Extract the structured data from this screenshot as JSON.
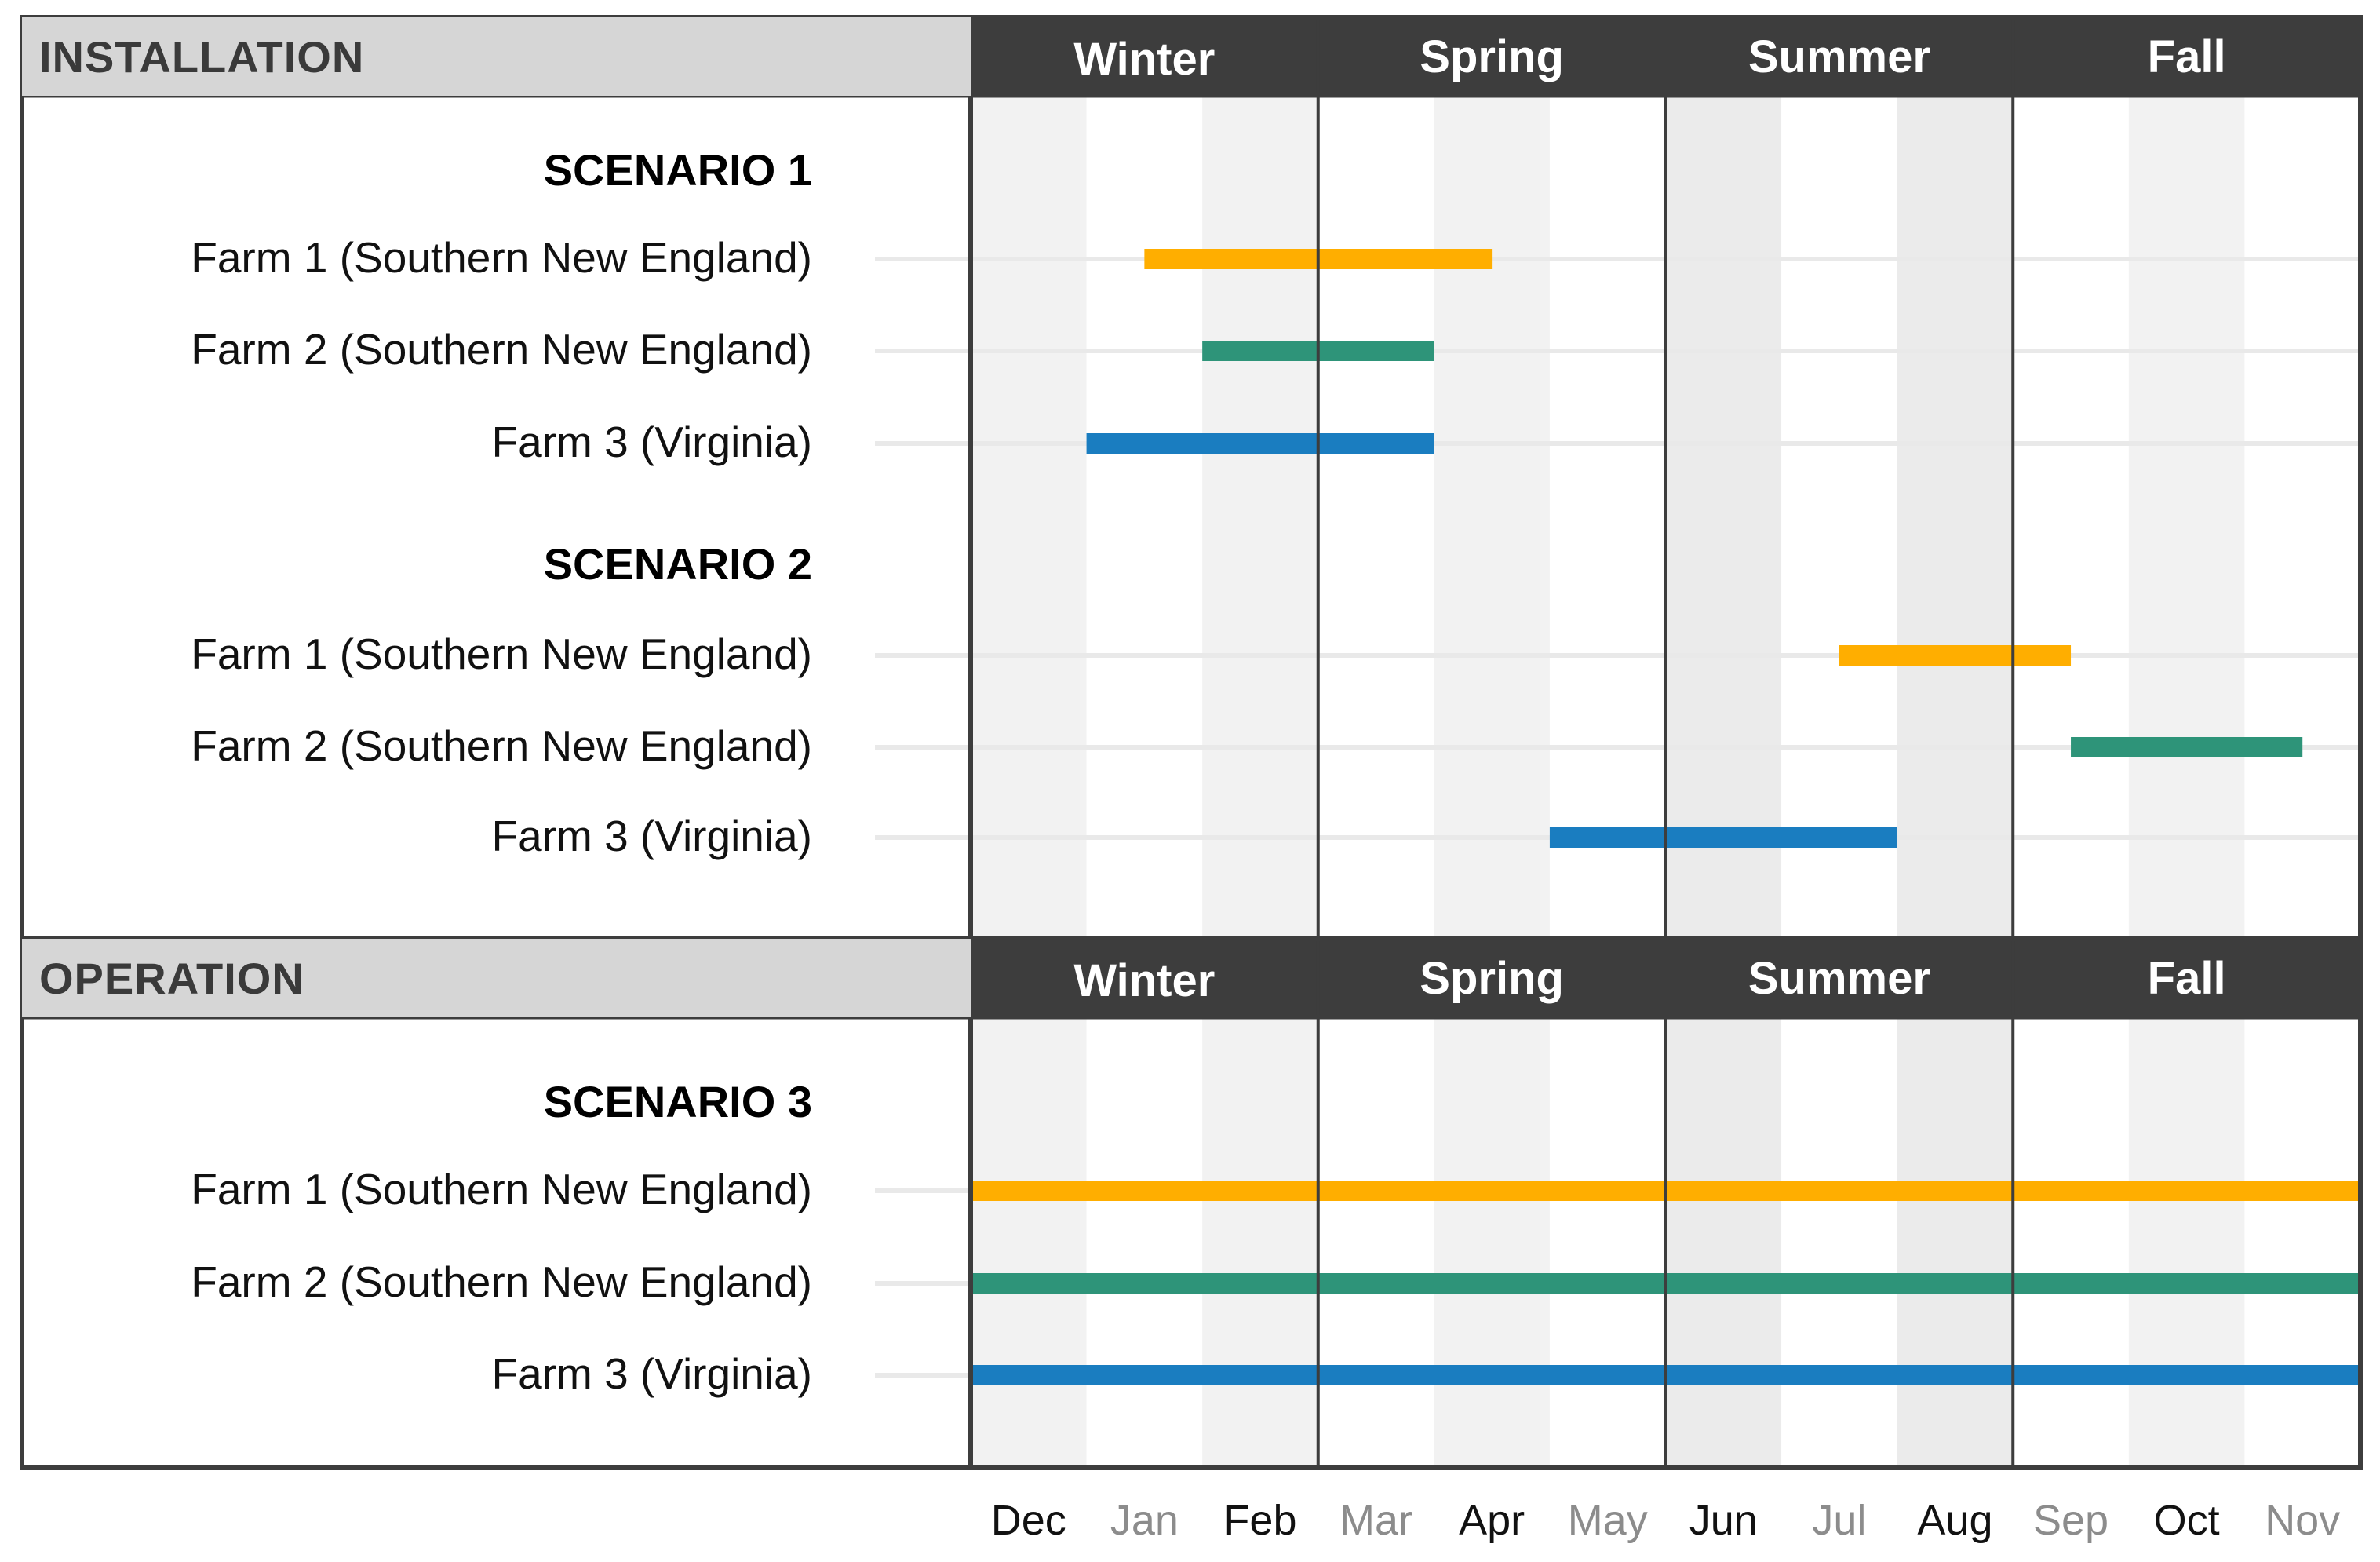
{
  "sections": [
    {
      "title": "INSTALLATION",
      "seasons": [
        "Winter",
        "Spring",
        "Summer",
        "Fall"
      ],
      "scenarios": [
        {
          "title": "SCENARIO 1",
          "farms": [
            {
              "label": "Farm 1 (Southern New England)",
              "color": "#FFAE00",
              "start": 1.5,
              "end": 4.5
            },
            {
              "label": "Farm 2 (Southern New England)",
              "color": "#2E9479",
              "start": 2.0,
              "end": 4.0
            },
            {
              "label": "Farm 3 (Virginia)",
              "color": "#1A7DC0",
              "start": 1.0,
              "end": 4.0
            }
          ]
        },
        {
          "title": "SCENARIO 2",
          "farms": [
            {
              "label": "Farm 1 (Southern New England)",
              "color": "#FFAE00",
              "start": 7.5,
              "end": 9.5
            },
            {
              "label": "Farm 2 (Southern New England)",
              "color": "#2E9479",
              "start": 9.5,
              "end": 11.5
            },
            {
              "label": "Farm 3 (Virginia)",
              "color": "#1A7DC0",
              "start": 5.0,
              "end": 8.0
            }
          ]
        }
      ]
    },
    {
      "title": "OPERATION",
      "seasons": [
        "Winter",
        "Spring",
        "Summer",
        "Fall"
      ],
      "scenarios": [
        {
          "title": "SCENARIO 3",
          "farms": [
            {
              "label": "Farm 1 (Southern New England)",
              "color": "#FFAE00",
              "start": 0,
              "end": 12
            },
            {
              "label": "Farm 2 (Southern New England)",
              "color": "#2E9479",
              "start": 0,
              "end": 12
            },
            {
              "label": "Farm 3 (Virginia)",
              "color": "#1A7DC0",
              "start": 0,
              "end": 12
            }
          ]
        }
      ]
    }
  ],
  "chart_data": {
    "type": "gantt",
    "x_axis": {
      "months": [
        {
          "label": "Dec",
          "emphasis": true
        },
        {
          "label": "Jan",
          "emphasis": false
        },
        {
          "label": "Feb",
          "emphasis": true
        },
        {
          "label": "Mar",
          "emphasis": false
        },
        {
          "label": "Apr",
          "emphasis": true
        },
        {
          "label": "May",
          "emphasis": false
        },
        {
          "label": "Jun",
          "emphasis": true
        },
        {
          "label": "Jul",
          "emphasis": false
        },
        {
          "label": "Aug",
          "emphasis": true
        },
        {
          "label": "Sep",
          "emphasis": false
        },
        {
          "label": "Oct",
          "emphasis": true
        },
        {
          "label": "Nov",
          "emphasis": false
        }
      ],
      "range_months": [
        0,
        12
      ]
    },
    "seasons": [
      "Winter",
      "Spring",
      "Summer",
      "Fall"
    ],
    "bar_unit": "months from start of Dec"
  },
  "colors": {
    "header_dark": "#3d3d3d",
    "section_gray": "#d6d6d6",
    "stripe_light": "#f2f2f2",
    "stripe_summer_dark": "#ebebeb",
    "border": "#3d3d3d",
    "month_emphasis": "#111111",
    "month_muted": "#8c8c8c"
  }
}
